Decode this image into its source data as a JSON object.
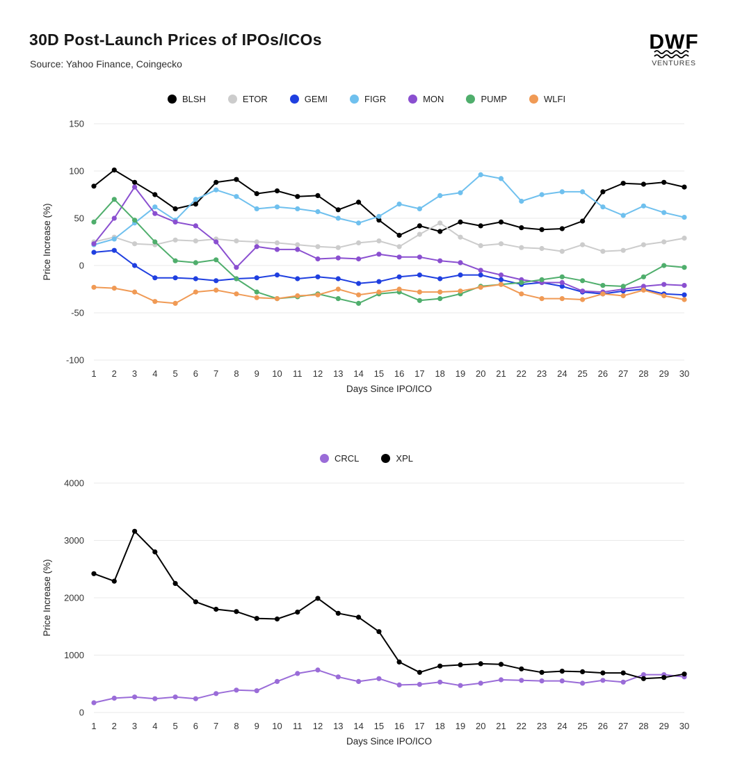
{
  "header": {
    "title": "30D Post-Launch Prices of IPOs/ICOs",
    "source": "Source: Yahoo Finance, Coingecko",
    "logo_text": "DWF",
    "logo_subtext": "VENTURES"
  },
  "style": {
    "grid_color": "#e9e9e9",
    "tick_color": "#333333",
    "axis_label_color": "#222222"
  },
  "chart_data": [
    {
      "type": "line",
      "title": "",
      "xlabel": "Days Since IPO/ICO",
      "ylabel": "Price Increase (%)",
      "x": [
        1,
        2,
        3,
        4,
        5,
        6,
        7,
        8,
        9,
        10,
        11,
        12,
        13,
        14,
        15,
        16,
        17,
        18,
        19,
        20,
        21,
        22,
        23,
        24,
        25,
        26,
        27,
        28,
        29,
        30
      ],
      "ylim": [
        -100,
        150
      ],
      "yticks": [
        -100,
        -50,
        0,
        50,
        100,
        150
      ],
      "grid": true,
      "legend_position": "top",
      "series": [
        {
          "name": "BLSH",
          "color": "#000000",
          "values": [
            84,
            101,
            88,
            75,
            60,
            65,
            88,
            91,
            76,
            79,
            73,
            74,
            59,
            67,
            48,
            32,
            42,
            36,
            46,
            42,
            46,
            40,
            38,
            39,
            47,
            78,
            87,
            86,
            88,
            83
          ]
        },
        {
          "name": "ETOR",
          "color": "#cccccc",
          "values": [
            25,
            30,
            23,
            22,
            27,
            26,
            28,
            26,
            25,
            24,
            22,
            20,
            19,
            24,
            26,
            20,
            33,
            45,
            30,
            21,
            23,
            19,
            18,
            15,
            22,
            15,
            16,
            22,
            25,
            29
          ]
        },
        {
          "name": "GEMI",
          "color": "#1f3fe0",
          "values": [
            14,
            16,
            0,
            -13,
            -13,
            -14,
            -16,
            -14,
            -13,
            -10,
            -14,
            -12,
            -14,
            -19,
            -17,
            -12,
            -10,
            -14,
            -10,
            -10,
            -15,
            -20,
            -18,
            -22,
            -28,
            -30,
            -27,
            -25,
            -30,
            -31
          ]
        },
        {
          "name": "FIGR",
          "color": "#6fc0ee",
          "values": [
            22,
            28,
            45,
            62,
            48,
            70,
            80,
            73,
            60,
            62,
            60,
            57,
            50,
            45,
            52,
            65,
            60,
            74,
            77,
            96,
            92,
            68,
            75,
            78,
            78,
            62,
            53,
            63,
            56,
            51
          ]
        },
        {
          "name": "MON",
          "color": "#8a4fd0",
          "values": [
            23,
            50,
            83,
            55,
            46,
            42,
            25,
            -2,
            20,
            17,
            17,
            7,
            8,
            7,
            12,
            9,
            9,
            5,
            3,
            -5,
            -10,
            -15,
            -18,
            -18,
            -27,
            -28,
            -25,
            -22,
            -20,
            -21
          ]
        },
        {
          "name": "PUMP",
          "color": "#4fae6c",
          "values": [
            46,
            70,
            48,
            25,
            5,
            3,
            6,
            -14,
            -28,
            -35,
            -33,
            -30,
            -35,
            -40,
            -30,
            -28,
            -37,
            -35,
            -30,
            -22,
            -20,
            -18,
            -15,
            -12,
            -16,
            -21,
            -22,
            -12,
            0,
            -2
          ]
        },
        {
          "name": "WLFI",
          "color": "#f09a55",
          "values": [
            -23,
            -24,
            -28,
            -38,
            -40,
            -28,
            -26,
            -30,
            -34,
            -35,
            -32,
            -31,
            -25,
            -31,
            -28,
            -25,
            -28,
            -28,
            -27,
            -23,
            -20,
            -30,
            -35,
            -35,
            -36,
            -30,
            -32,
            -26,
            -32,
            -36
          ]
        }
      ]
    },
    {
      "type": "line",
      "title": "",
      "xlabel": "Days Since IPO/ICO",
      "ylabel": "Price Increase (%)",
      "x": [
        1,
        2,
        3,
        4,
        5,
        6,
        7,
        8,
        9,
        10,
        11,
        12,
        13,
        14,
        15,
        16,
        17,
        18,
        19,
        20,
        21,
        22,
        23,
        24,
        25,
        26,
        27,
        28,
        29,
        30
      ],
      "ylim": [
        0,
        4000
      ],
      "yticks": [
        0,
        1000,
        2000,
        3000,
        4000
      ],
      "grid": true,
      "legend_position": "top",
      "series": [
        {
          "name": "CRCL",
          "color": "#9a6cd8",
          "values": [
            170,
            250,
            270,
            240,
            270,
            240,
            330,
            390,
            380,
            540,
            680,
            740,
            620,
            540,
            590,
            480,
            490,
            530,
            470,
            510,
            570,
            560,
            550,
            550,
            510,
            560,
            530,
            660,
            660,
            620
          ]
        },
        {
          "name": "XPL",
          "color": "#000000",
          "values": [
            2420,
            2290,
            3160,
            2800,
            2250,
            1930,
            1800,
            1760,
            1640,
            1630,
            1750,
            1990,
            1730,
            1660,
            1410,
            880,
            700,
            810,
            830,
            850,
            840,
            760,
            700,
            720,
            710,
            690,
            690,
            590,
            610,
            670
          ]
        }
      ]
    }
  ]
}
